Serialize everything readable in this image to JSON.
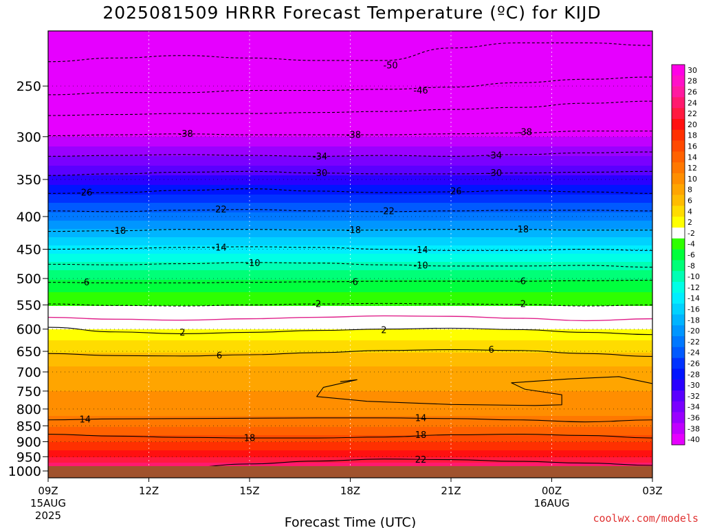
{
  "title": "2025081509 HRRR Forecast Temperature (ºC) for KIJD",
  "credit": "coolwx.com/models",
  "colors": {
    "background": "#ffffff",
    "ground": "#a0522d",
    "pos_contour": "#000000",
    "zero_contour": "#e0208a"
  },
  "chart_data": {
    "type": "heatmap",
    "title": "2025081509 HRRR Forecast Temperature (ºC) for KIJD",
    "xlabel": "Forecast Time (UTC)",
    "ylabel": "",
    "x_ticks": [
      {
        "hour": 0,
        "label": "09Z",
        "sub1": "15AUG",
        "sub2": "2025"
      },
      {
        "hour": 3,
        "label": "12Z",
        "sub1": "",
        "sub2": ""
      },
      {
        "hour": 6,
        "label": "15Z",
        "sub1": "",
        "sub2": ""
      },
      {
        "hour": 9,
        "label": "18Z",
        "sub1": "",
        "sub2": ""
      },
      {
        "hour": 12,
        "label": "21Z",
        "sub1": "",
        "sub2": ""
      },
      {
        "hour": 15,
        "label": "00Z",
        "sub1": "16AUG",
        "sub2": ""
      },
      {
        "hour": 18,
        "label": "03Z",
        "sub1": "",
        "sub2": ""
      }
    ],
    "xlim": [
      0,
      18
    ],
    "y_ticks": [
      250,
      300,
      350,
      400,
      450,
      500,
      550,
      600,
      650,
      700,
      750,
      800,
      850,
      900,
      950,
      1000
    ],
    "ylim_hpa": [
      1025,
      205
    ],
    "y_scale": "log-pressure",
    "grid": "dotted",
    "temperature_profile": [
      {
        "p": 1000,
        "t": 27
      },
      {
        "p": 975,
        "t": 25
      },
      {
        "p": 950,
        "t": 22
      },
      {
        "p": 925,
        "t": 20
      },
      {
        "p": 900,
        "t": 18
      },
      {
        "p": 875,
        "t": 16
      },
      {
        "p": 850,
        "t": 14
      },
      {
        "p": 800,
        "t": 11
      },
      {
        "p": 750,
        "t": 10
      },
      {
        "p": 700,
        "t": 9
      },
      {
        "p": 650,
        "t": 6
      },
      {
        "p": 600,
        "t": 2
      },
      {
        "p": 575,
        "t": 0
      },
      {
        "p": 550,
        "t": -2
      },
      {
        "p": 500,
        "t": -6
      },
      {
        "p": 450,
        "t": -13
      },
      {
        "p": 400,
        "t": -21
      },
      {
        "p": 350,
        "t": -29
      },
      {
        "p": 300,
        "t": -38
      },
      {
        "p": 250,
        "t": -46
      },
      {
        "p": 210,
        "t": -52
      }
    ],
    "contours": [
      {
        "value": 26,
        "label": "26",
        "pressures": [
          1015,
          1008,
          1002,
          998,
          995,
          996,
          998,
          1002,
          1005,
          1010
        ]
      },
      {
        "value": 22,
        "label": "22",
        "pressures": [
          999,
          994,
          988,
          975,
          965,
          958,
          960,
          966,
          972,
          980
        ]
      },
      {
        "value": 18,
        "label": "18",
        "pressures": [
          876,
          882,
          886,
          888,
          888,
          885,
          878,
          876,
          880,
          888
        ]
      },
      {
        "value": 14,
        "label": "14",
        "pressures": [
          832,
          829,
          828,
          827,
          826,
          826,
          828,
          832,
          838,
          832
        ]
      },
      {
        "value": 6,
        "label": "6",
        "pressures": [
          655,
          660,
          661,
          658,
          653,
          648,
          646,
          648,
          655,
          662
        ]
      },
      {
        "value": 2,
        "label": "2",
        "pressures": [
          596,
          606,
          610,
          607,
          603,
          600,
          598,
          601,
          607,
          612
        ]
      },
      {
        "value": 0,
        "label": "",
        "pressures": [
          575,
          579,
          581,
          578,
          575,
          572,
          573,
          577,
          582,
          578
        ]
      },
      {
        "value": -2,
        "label": "-2",
        "pressures": [
          548,
          551,
          552,
          550,
          548,
          547,
          548,
          549,
          552,
          550
        ]
      },
      {
        "value": -6,
        "label": "-6",
        "pressures": [
          507,
          508,
          508,
          507,
          506,
          505,
          505,
          505,
          504,
          503
        ]
      },
      {
        "value": -10,
        "label": "-10",
        "pressures": [
          475,
          476,
          474,
          472,
          473,
          476,
          478,
          478,
          477,
          480
        ]
      },
      {
        "value": -14,
        "label": "-14",
        "pressures": [
          450,
          449,
          447,
          446,
          447,
          450,
          452,
          452,
          450,
          452
        ]
      },
      {
        "value": -18,
        "label": "-18",
        "pressures": [
          422,
          421,
          419,
          419,
          420,
          420,
          419,
          419,
          420,
          420
        ]
      },
      {
        "value": -22,
        "label": "-22",
        "pressures": [
          392,
          393,
          391,
          390,
          392,
          393,
          392,
          391,
          391,
          392
        ]
      },
      {
        "value": -26,
        "label": "-26",
        "pressures": [
          368,
          367,
          364,
          362,
          365,
          367,
          366,
          364,
          366,
          368
        ]
      },
      {
        "value": -30,
        "label": "-30",
        "pressures": [
          345,
          343,
          341,
          340,
          342,
          343,
          343,
          342,
          341,
          340
        ]
      },
      {
        "value": -34,
        "label": "-34",
        "pressures": [
          322,
          321,
          320,
          321,
          322,
          321,
          322,
          320,
          318,
          317
        ]
      },
      {
        "value": -38,
        "label": "-38",
        "pressures": [
          299,
          298,
          297,
          298,
          298,
          298,
          297,
          296,
          294,
          294
        ]
      },
      {
        "value": -42,
        "label": "",
        "pressures": [
          278,
          277,
          276,
          276,
          275,
          274,
          272,
          270,
          266,
          264
        ]
      },
      {
        "value": -46,
        "label": "-46",
        "pressures": [
          258,
          256,
          256,
          254,
          254,
          253,
          251,
          247,
          244,
          242
        ]
      },
      {
        "value": -50,
        "label": "-50",
        "pressures": [
          229,
          226,
          224,
          226,
          228,
          228,
          218,
          214,
          214,
          216
        ]
      }
    ],
    "contour_labels": [
      {
        "text": "-50",
        "hour": 10.2,
        "p": 232
      },
      {
        "text": "-46",
        "hour": 11.1,
        "p": 254
      },
      {
        "text": "-38",
        "hour": 4.1,
        "p": 297
      },
      {
        "text": "-38",
        "hour": 9.1,
        "p": 298
      },
      {
        "text": "-38",
        "hour": 14.2,
        "p": 295
      },
      {
        "text": "-34",
        "hour": 8.1,
        "p": 322
      },
      {
        "text": "-34",
        "hour": 13.3,
        "p": 321
      },
      {
        "text": "-30",
        "hour": 8.1,
        "p": 342
      },
      {
        "text": "-30",
        "hour": 13.3,
        "p": 342
      },
      {
        "text": "-26",
        "hour": 1.1,
        "p": 367
      },
      {
        "text": "-26",
        "hour": 12.1,
        "p": 365
      },
      {
        "text": "-22",
        "hour": 5.1,
        "p": 390
      },
      {
        "text": "-22",
        "hour": 10.1,
        "p": 392
      },
      {
        "text": "-18",
        "hour": 2.1,
        "p": 421
      },
      {
        "text": "-18",
        "hour": 9.1,
        "p": 420
      },
      {
        "text": "-18",
        "hour": 14.1,
        "p": 419
      },
      {
        "text": "-14",
        "hour": 5.1,
        "p": 447
      },
      {
        "text": "-14",
        "hour": 11.1,
        "p": 451
      },
      {
        "text": "-10",
        "hour": 6.1,
        "p": 473
      },
      {
        "text": "-10",
        "hour": 11.1,
        "p": 477
      },
      {
        "text": "-6",
        "hour": 1.1,
        "p": 507
      },
      {
        "text": "-6",
        "hour": 9.1,
        "p": 506
      },
      {
        "text": "-6",
        "hour": 14.1,
        "p": 505
      },
      {
        "text": "-2",
        "hour": 8.0,
        "p": 548
      },
      {
        "text": "-2",
        "hour": 14.1,
        "p": 548
      },
      {
        "text": "2",
        "hour": 4.0,
        "p": 607
      },
      {
        "text": "2",
        "hour": 10.0,
        "p": 602
      },
      {
        "text": "6",
        "hour": 5.1,
        "p": 660
      },
      {
        "text": "6",
        "hour": 13.2,
        "p": 646
      },
      {
        "text": "14",
        "hour": 1.1,
        "p": 830
      },
      {
        "text": "14",
        "hour": 11.1,
        "p": 826
      },
      {
        "text": "18",
        "hour": 6.0,
        "p": 888
      },
      {
        "text": "18",
        "hour": 11.1,
        "p": 878
      },
      {
        "text": "22",
        "hour": 11.1,
        "p": 960
      },
      {
        "text": "26",
        "hour": 11.1,
        "p": 998
      }
    ],
    "warm_pocket_800": [
      {
        "hour": 8.7,
        "p": 725
      },
      {
        "hour": 9.2,
        "p": 720
      },
      {
        "hour": 8.2,
        "p": 740
      },
      {
        "hour": 8.0,
        "p": 765
      },
      {
        "hour": 9.5,
        "p": 778
      },
      {
        "hour": 12.0,
        "p": 787
      },
      {
        "hour": 14.5,
        "p": 790
      },
      {
        "hour": 15.3,
        "p": 788
      },
      {
        "hour": 15.3,
        "p": 760
      },
      {
        "hour": 14.2,
        "p": 745
      },
      {
        "hour": 13.8,
        "p": 728
      },
      {
        "hour": 15.5,
        "p": 718
      },
      {
        "hour": 17.0,
        "p": 712
      },
      {
        "hour": 18.0,
        "p": 730
      }
    ],
    "colorbar": {
      "levels": [
        30,
        28,
        26,
        24,
        22,
        20,
        18,
        16,
        14,
        12,
        10,
        8,
        6,
        4,
        2,
        -2,
        -4,
        -6,
        -8,
        -10,
        -12,
        -14,
        -16,
        -18,
        -20,
        -22,
        -24,
        -26,
        -28,
        -30,
        -32,
        -34,
        -36,
        -38,
        -40
      ],
      "colors": [
        "#ff00e6",
        "#ff10c8",
        "#ff1aa0",
        "#ff1a6e",
        "#ff1a40",
        "#ff1010",
        "#ff3000",
        "#ff4a00",
        "#ff6200",
        "#ff7800",
        "#ff8e00",
        "#ffa500",
        "#ffbc00",
        "#ffdc00",
        "#ffff00",
        "#ffffff",
        "#2eff00",
        "#00ff3c",
        "#00ff78",
        "#00ffb4",
        "#00ffe6",
        "#00eeff",
        "#00d2ff",
        "#00b4ff",
        "#0096ff",
        "#0078ff",
        "#005aff",
        "#0032ff",
        "#0014ff",
        "#2a00ff",
        "#5a00ff",
        "#7a00ff",
        "#9a00ff",
        "#c000ff",
        "#e600ff"
      ]
    }
  }
}
